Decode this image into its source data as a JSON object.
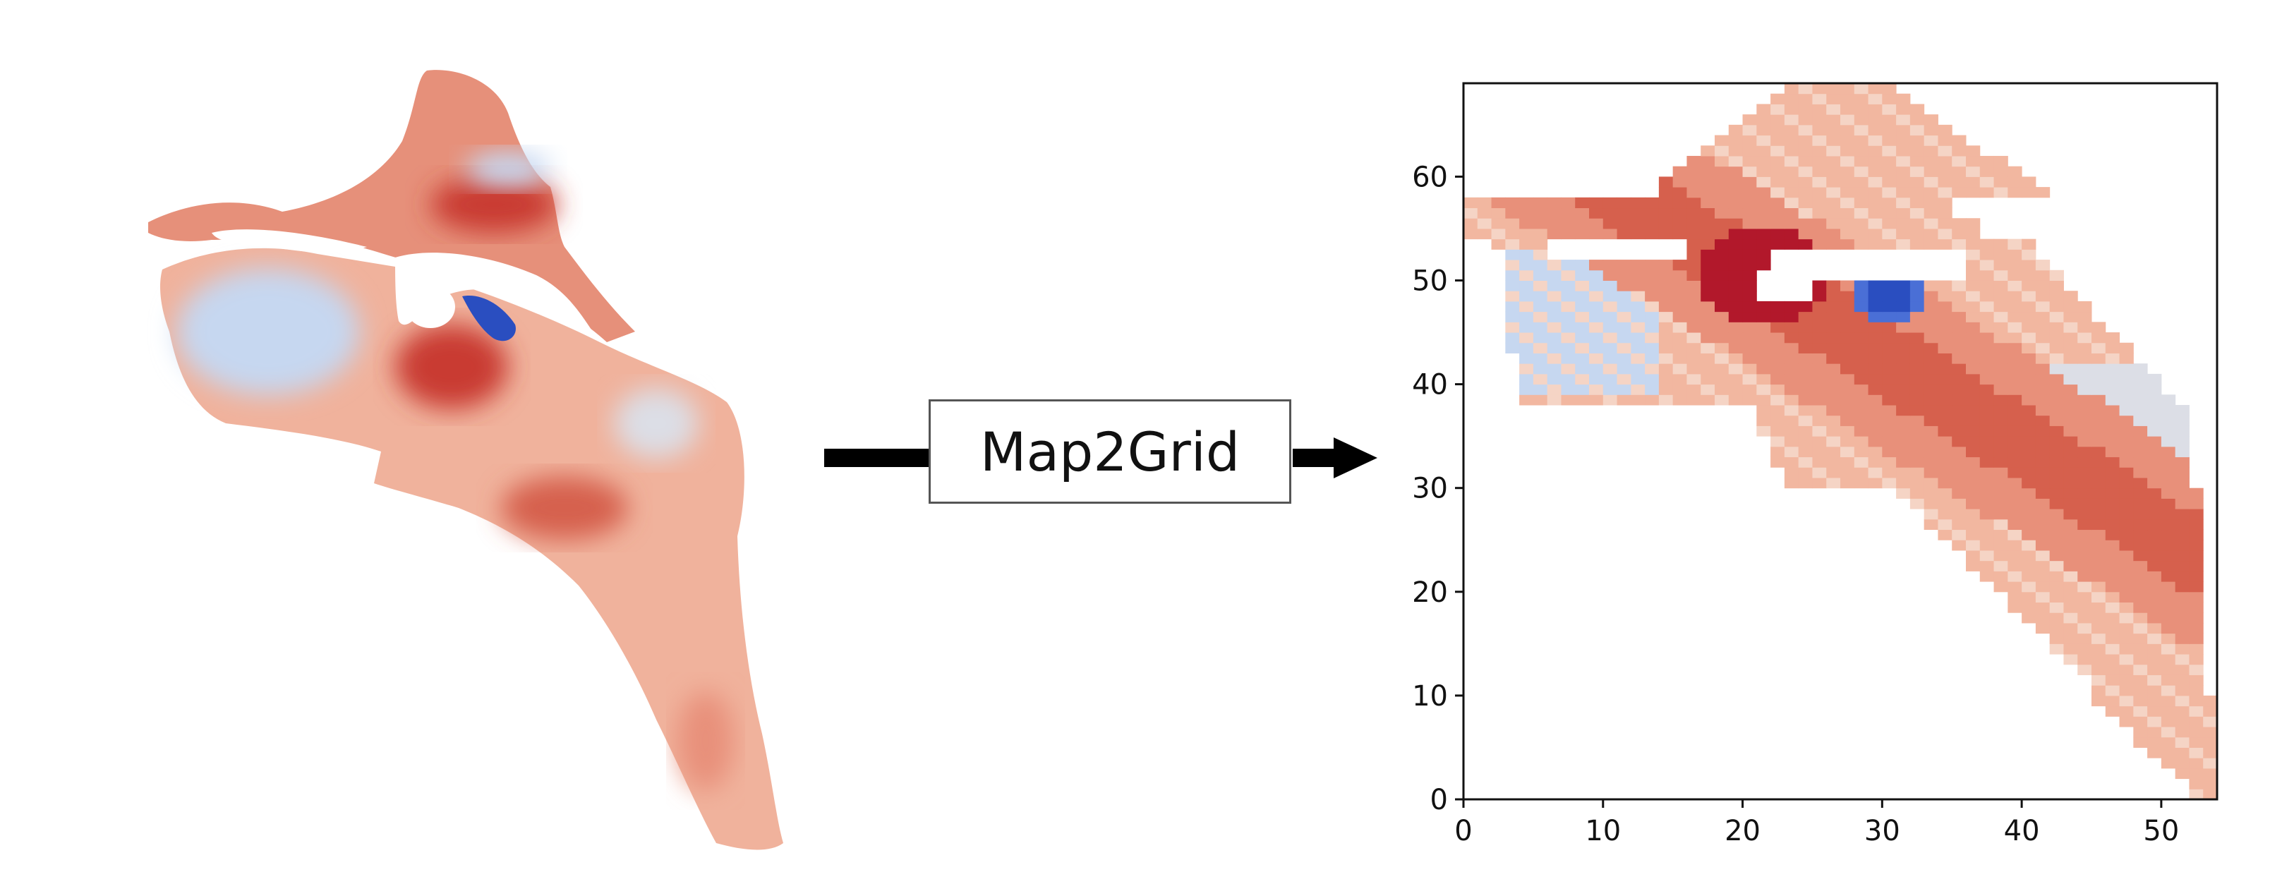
{
  "process": {
    "label": "Map2Grid"
  },
  "colors": {
    "deep_red": "#b2182b",
    "red": "#d6604d",
    "salmon": "#e8907a",
    "light_salmon": "#f2b7a0",
    "pale": "#f5d4c5",
    "neutral": "#dcdee6",
    "light_blue": "#c6d7f0",
    "blue": "#4a6fd6",
    "deep_blue": "#2a4ec0"
  },
  "chart_data": {
    "type": "heatmap",
    "title": "",
    "xlabel": "",
    "ylabel": "",
    "xlim": [
      0,
      54
    ],
    "ylim": [
      0,
      69
    ],
    "x_ticks": [
      "0",
      "10",
      "20",
      "30",
      "40",
      "50"
    ],
    "y_ticks": [
      "0",
      "10",
      "20",
      "30",
      "40",
      "50",
      "60"
    ]
  }
}
